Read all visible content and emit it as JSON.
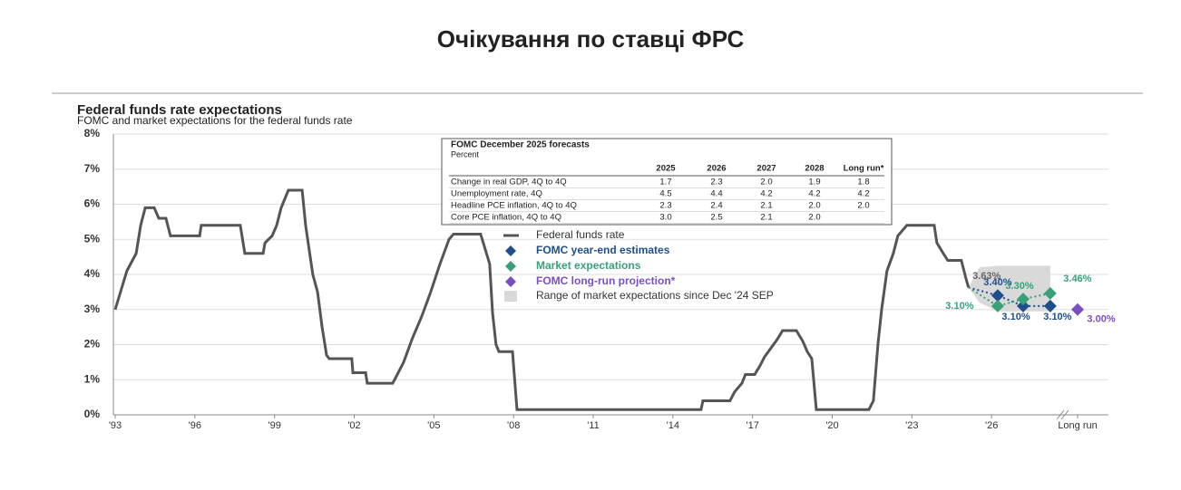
{
  "header": {
    "title": "Очікування по ставці ФРС"
  },
  "chart_data": {
    "type": "line",
    "title": "Federal funds rate expectations",
    "subtitle": "FOMC and market expectations for the federal funds rate",
    "xlim": [
      1993,
      2030.4
    ],
    "ylim": [
      0,
      8
    ],
    "grid": true,
    "yticks": [
      {
        "value": 0,
        "label": "0%"
      },
      {
        "value": 1,
        "label": "1%"
      },
      {
        "value": 2,
        "label": "2%"
      },
      {
        "value": 3,
        "label": "3%"
      },
      {
        "value": 4,
        "label": "4%"
      },
      {
        "value": 5,
        "label": "5%"
      },
      {
        "value": 6,
        "label": "6%"
      },
      {
        "value": 7,
        "label": "7%"
      },
      {
        "value": 8,
        "label": "8%"
      }
    ],
    "xticks": [
      {
        "value": 1993,
        "label": "'93"
      },
      {
        "value": 1996,
        "label": "'96"
      },
      {
        "value": 1999,
        "label": "'99"
      },
      {
        "value": 2002,
        "label": "'02"
      },
      {
        "value": 2005,
        "label": "'05"
      },
      {
        "value": 2008,
        "label": "'08"
      },
      {
        "value": 2011,
        "label": "'11"
      },
      {
        "value": 2014,
        "label": "'14"
      },
      {
        "value": 2017,
        "label": "'17"
      },
      {
        "value": 2020,
        "label": "'20"
      },
      {
        "value": 2023,
        "label": "'23"
      },
      {
        "value": 2026,
        "label": "'26"
      },
      {
        "value": 2029.24,
        "label": "Long run"
      }
    ],
    "series": [
      {
        "name": "Federal funds rate",
        "color": "#555555",
        "x": [
          1993,
          1993.44,
          1993.79,
          1993.96,
          1994.13,
          1994.47,
          1994.64,
          1994.91,
          1995.08,
          1996.18,
          1996.24,
          1997.71,
          1997.88,
          1998.57,
          1998.64,
          1998.91,
          1999.08,
          1999.25,
          1999.52,
          2000.04,
          2000.17,
          2000.44,
          2000.62,
          2000.79,
          2000.96,
          2001.06,
          2001.91,
          2001.95,
          2002.43,
          2002.49,
          2003.45,
          2003.59,
          2003.86,
          2004.2,
          2004.54,
          2004.88,
          2005.23,
          2005.57,
          2005.74,
          2006.76,
          2007.1,
          2007.21,
          2007.34,
          2007.45,
          2007.96,
          2008.13,
          2015.06,
          2015.13,
          2016.15,
          2016.32,
          2016.6,
          2016.73,
          2017.08,
          2017.28,
          2017.45,
          2017.69,
          2017.93,
          2018.13,
          2018.65,
          2018.89,
          2019.06,
          2019.23,
          2019.4,
          2021.38,
          2021.55,
          2021.72,
          2021.86,
          2022.06,
          2022.3,
          2022.47,
          2022.81,
          2023.84,
          2023.94,
          2024.18,
          2024.35,
          2024.86,
          2025.03,
          2025.13
        ],
        "values": [
          3.0,
          4.1,
          4.6,
          5.4,
          5.9,
          5.9,
          5.6,
          5.6,
          5.1,
          5.1,
          5.4,
          5.4,
          4.6,
          4.6,
          4.9,
          5.1,
          5.4,
          5.9,
          6.4,
          6.4,
          5.4,
          4.0,
          3.5,
          2.5,
          1.7,
          1.6,
          1.6,
          1.2,
          1.2,
          0.9,
          0.9,
          1.1,
          1.5,
          2.2,
          2.8,
          3.5,
          4.3,
          5.0,
          5.15,
          5.15,
          4.3,
          2.9,
          2.0,
          1.8,
          1.8,
          0.15,
          0.15,
          0.4,
          0.4,
          0.65,
          0.9,
          1.15,
          1.15,
          1.4,
          1.65,
          1.9,
          2.15,
          2.4,
          2.4,
          2.1,
          1.8,
          1.6,
          0.15,
          0.15,
          0.4,
          2.0,
          3.0,
          4.1,
          4.6,
          5.1,
          5.4,
          5.4,
          4.9,
          4.6,
          4.4,
          4.4,
          3.9,
          3.63
        ],
        "value_labels": {
          "77": "3.63%"
        }
      },
      {
        "name": "FOMC year-end estimates",
        "color": "#1f4e8c",
        "marker": "diamond",
        "x": [
          2026.23,
          2027.19,
          2028.21
        ],
        "values": [
          3.4,
          3.1,
          3.1
        ],
        "value_labels": [
          "3.40%",
          "3.10%",
          "3.10%"
        ]
      },
      {
        "name": "Market expectations",
        "color": "#3aa07a",
        "marker": "diamond",
        "x": [
          2026.23,
          2027.19,
          2028.21
        ],
        "values": [
          3.1,
          3.3,
          3.46
        ],
        "value_labels": [
          "3.10%",
          "3.30%",
          "3.46%"
        ]
      },
      {
        "name": "FOMC long-run projection*",
        "color": "#7b4fbf",
        "marker": "diamond",
        "x": [
          2029.24
        ],
        "values": [
          3.0
        ],
        "value_labels": [
          "3.00%"
        ]
      }
    ],
    "range": {
      "name": "Range of market expectations since Dec '24 SEP",
      "color": "#d9d9d9",
      "x": [
        2025.13,
        2025.54,
        2026.23,
        2028.21
      ],
      "low": [
        3.63,
        3.2,
        2.95,
        2.95
      ],
      "high": [
        3.63,
        4.2,
        4.25,
        4.25
      ]
    },
    "table": {
      "title": "FOMC December 2025 forecasts",
      "subtitle": "Percent",
      "columns": [
        "2025",
        "2026",
        "2027",
        "2028",
        "Long run*"
      ],
      "rows": [
        {
          "label": "Change in real GDP, 4Q to 4Q",
          "values": [
            "1.7",
            "2.3",
            "2.0",
            "1.9",
            "1.8"
          ]
        },
        {
          "label": "Unemployment rate, 4Q",
          "values": [
            "4.5",
            "4.4",
            "4.2",
            "4.2",
            "4.2"
          ]
        },
        {
          "label": "Headline PCE inflation, 4Q to 4Q",
          "values": [
            "2.3",
            "2.4",
            "2.1",
            "2.0",
            "2.0"
          ]
        },
        {
          "label": "Core PCE inflation, 4Q to 4Q",
          "values": [
            "3.0",
            "2.5",
            "2.1",
            "2.0",
            null
          ]
        }
      ]
    }
  }
}
